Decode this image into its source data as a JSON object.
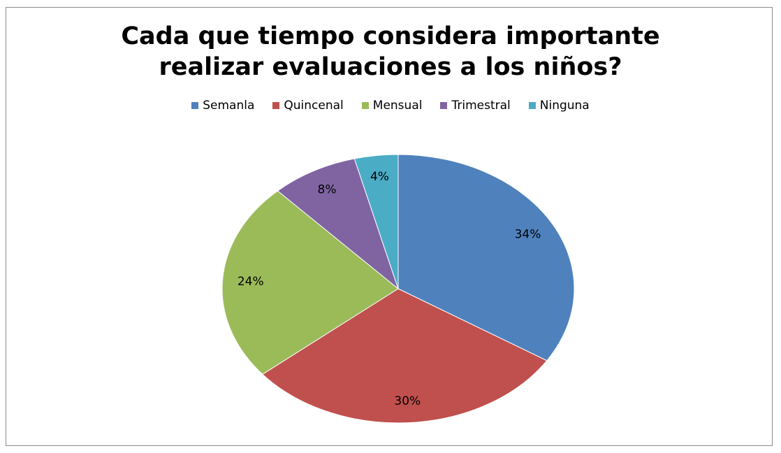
{
  "chart_data": {
    "type": "pie",
    "title": "Cada que tiempo considera importante realizar evaluaciones a los niños?",
    "categories": [
      "Semanla",
      "Quincenal",
      "Mensual",
      "Trimestral",
      "Ninguna"
    ],
    "values": [
      34,
      30,
      24,
      8,
      4
    ],
    "value_labels": [
      "34%",
      "30%",
      "24%",
      "8%",
      "4%"
    ],
    "colors": [
      "#4f81bd",
      "#c0504d",
      "#9bbb59",
      "#8064a2",
      "#4bacc6"
    ],
    "legend": "top"
  }
}
